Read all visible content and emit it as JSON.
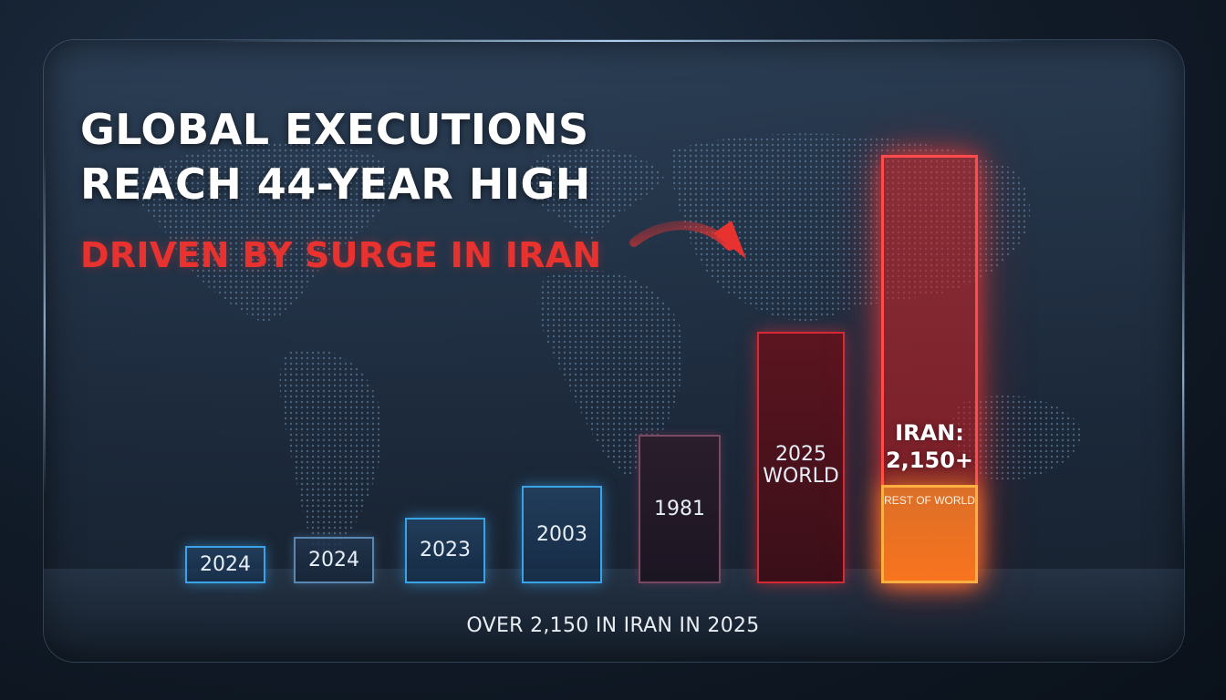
{
  "headline": {
    "line1": "GLOBAL EXECUTIONS",
    "line2": "REACH 44-YEAR HIGH",
    "subtitle": "DRIVEN BY SURGE IN IRAN"
  },
  "footer": "OVER 2,150 IN IRAN IN 2025",
  "chart_data": {
    "type": "bar",
    "title": "",
    "xlabel": "",
    "ylabel": "",
    "categories": [
      "2024",
      "2024",
      "2023",
      "2003",
      "1981",
      "2025 WORLD",
      "IRAN: 2,150+"
    ],
    "values": [
      40,
      50,
      70,
      105,
      160,
      270,
      460
    ],
    "iran_breakdown": {
      "label_line1": "IRAN:",
      "label_line2": "2,150+",
      "rest_label": "REST OF WORLD",
      "rest_fraction": 0.23
    },
    "colors": {
      "blue": "#3aa3e8",
      "dark": "#7a4a62",
      "red": "#d52a36",
      "iran": "#ff4b4b",
      "rest": "#ffb040",
      "subtitle": "#e8322f"
    },
    "grid": false,
    "legend": "none"
  }
}
